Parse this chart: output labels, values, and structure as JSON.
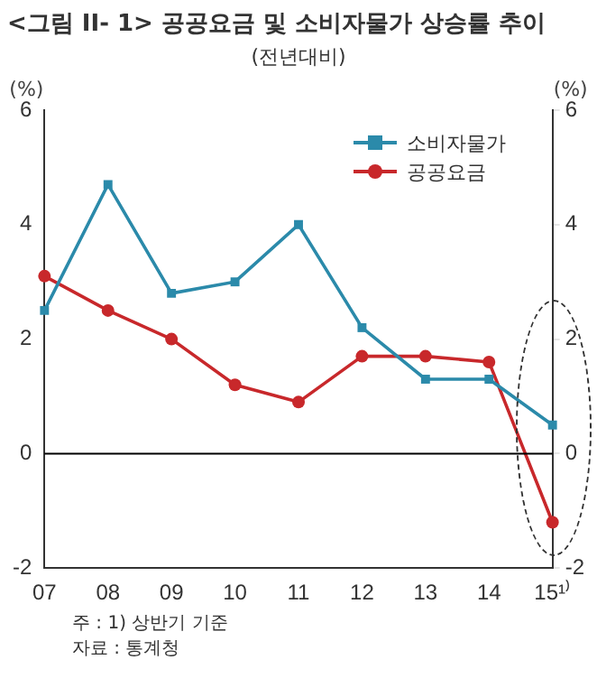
{
  "chart_data": {
    "type": "line",
    "title": "<그림 II- 1> 공공요금 및 소비자물가 상승률 추이",
    "subtitle": "(전년대비)",
    "ylabel": "(%)",
    "y2label": "(%)",
    "categories": [
      "07",
      "08",
      "09",
      "10",
      "11",
      "12",
      "13",
      "14",
      "15¹⁾"
    ],
    "series": [
      {
        "name": "소비자물가",
        "color": "#2b8aaa",
        "marker": "square",
        "values": [
          2.5,
          4.7,
          2.8,
          3.0,
          4.0,
          2.2,
          1.3,
          1.3,
          0.5
        ]
      },
      {
        "name": "공공요금",
        "color": "#c8282b",
        "marker": "circle",
        "values": [
          3.1,
          2.5,
          2.0,
          1.2,
          0.9,
          1.7,
          1.7,
          1.6,
          -1.2
        ]
      }
    ],
    "ylim": [
      -2,
      6
    ],
    "yticks": [
      -2,
      0,
      2,
      4,
      6
    ],
    "y2lim": [
      -2,
      6
    ],
    "y2ticks": [
      -2,
      0,
      2,
      4,
      6
    ],
    "ref_lines": [
      {
        "axis": "y",
        "value": 0,
        "color": "#000000"
      }
    ],
    "legend": "top right",
    "grid": false,
    "line_style": "solid",
    "annotations": [
      "주 : 1) 상반기 기준",
      "자료 : 통계청"
    ]
  }
}
